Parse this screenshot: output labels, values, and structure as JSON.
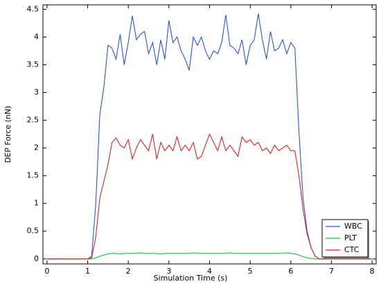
{
  "chart_data": {
    "type": "line",
    "xlabel": "Simulation Time (s)",
    "ylabel": "DEP Force (nN)",
    "x": [
      0,
      0.1,
      0.2,
      0.3,
      0.4,
      0.5,
      0.6,
      0.7,
      0.8,
      0.9,
      1,
      1.1,
      1.2,
      1.3,
      1.4,
      1.5,
      1.6,
      1.7,
      1.8,
      1.9,
      2,
      2.1,
      2.2,
      2.3,
      2.4,
      2.5,
      2.6,
      2.7,
      2.8,
      2.9,
      3,
      3.1,
      3.2,
      3.3,
      3.4,
      3.5,
      3.6,
      3.7,
      3.8,
      3.9,
      4,
      4.1,
      4.2,
      4.3,
      4.4,
      4.5,
      4.6,
      4.7,
      4.8,
      4.9,
      5,
      5.1,
      5.2,
      5.3,
      5.4,
      5.5,
      5.6,
      5.7,
      5.8,
      5.9,
      6,
      6.1,
      6.2,
      6.3,
      6.4,
      6.5,
      6.6,
      6.7,
      6.8,
      6.9,
      7,
      7.1,
      7.2,
      7.3,
      7.4,
      7.5,
      7.6,
      7.7,
      7.8,
      7.9,
      8
    ],
    "series": [
      {
        "name": "WBC",
        "color": "#2a52e0",
        "values": [
          0,
          0,
          0,
          0,
          0,
          0,
          0,
          0,
          0,
          0,
          0,
          0.05,
          1.0,
          2.6,
          3.1,
          3.85,
          3.8,
          3.6,
          4.05,
          3.5,
          3.9,
          4.38,
          3.95,
          4.05,
          4.1,
          3.7,
          3.9,
          3.5,
          3.95,
          3.6,
          4.3,
          3.9,
          4.0,
          3.75,
          3.6,
          3.4,
          4.0,
          3.85,
          4.0,
          3.75,
          3.6,
          3.75,
          3.7,
          3.9,
          4.4,
          3.85,
          3.8,
          3.7,
          3.95,
          3.5,
          3.85,
          3.95,
          4.42,
          3.95,
          3.6,
          4.1,
          3.75,
          3.8,
          3.95,
          3.7,
          3.9,
          3.8,
          2.3,
          1.1,
          0.5,
          0.2,
          0.05,
          0,
          0,
          0,
          0,
          0,
          0,
          0,
          0,
          0,
          0,
          0,
          0,
          0,
          0
        ]
      },
      {
        "name": "PLT",
        "color": "#22bb44",
        "values": [
          0,
          0,
          0,
          0,
          0,
          0,
          0,
          0,
          0,
          0,
          0,
          0,
          0.02,
          0.05,
          0.07,
          0.09,
          0.1,
          0.1,
          0.09,
          0.1,
          0.1,
          0.1,
          0.1,
          0.11,
          0.1,
          0.1,
          0.1,
          0.1,
          0.09,
          0.1,
          0.1,
          0.1,
          0.1,
          0.1,
          0.1,
          0.1,
          0.11,
          0.1,
          0.1,
          0.1,
          0.1,
          0.1,
          0.1,
          0.1,
          0.1,
          0.11,
          0.1,
          0.1,
          0.1,
          0.1,
          0.1,
          0.1,
          0.1,
          0.1,
          0.1,
          0.1,
          0.1,
          0.1,
          0.1,
          0.11,
          0.1,
          0.09,
          0.07,
          0.04,
          0.02,
          0.01,
          0,
          0,
          0,
          0,
          0,
          0,
          0,
          0,
          0,
          0,
          0,
          0,
          0,
          0,
          0
        ]
      },
      {
        "name": "CTC",
        "color": "#e02222",
        "values": [
          0,
          0,
          0,
          0,
          0,
          0,
          0,
          0,
          0,
          0,
          0,
          0.02,
          0.4,
          1.1,
          1.4,
          1.7,
          2.1,
          2.18,
          2.05,
          2.0,
          2.15,
          1.8,
          2.0,
          2.15,
          2.05,
          1.95,
          2.25,
          1.8,
          2.1,
          1.95,
          2.05,
          1.95,
          2.2,
          1.95,
          2.05,
          1.95,
          2.1,
          1.8,
          1.85,
          2.05,
          2.25,
          2.1,
          1.95,
          2.2,
          1.95,
          2.05,
          1.95,
          1.85,
          2.2,
          2.1,
          2.15,
          2.05,
          2.1,
          1.95,
          2.0,
          1.9,
          2.05,
          1.95,
          2.0,
          2.05,
          1.95,
          1.95,
          1.5,
          0.9,
          0.45,
          0.2,
          0.05,
          0,
          0,
          0,
          0,
          0,
          0,
          0,
          0,
          0,
          0,
          0,
          0,
          0,
          0
        ]
      }
    ],
    "xlim": [
      -0.1,
      8.1
    ],
    "xticks": [
      0,
      1,
      2,
      3,
      4,
      5,
      6,
      7,
      8
    ],
    "ylim": [
      -0.09,
      4.58
    ],
    "yticks": [
      0,
      0.5,
      1,
      1.5,
      2,
      2.5,
      3,
      3.5,
      4,
      4.5
    ],
    "grid": false,
    "legend": "lower right"
  }
}
